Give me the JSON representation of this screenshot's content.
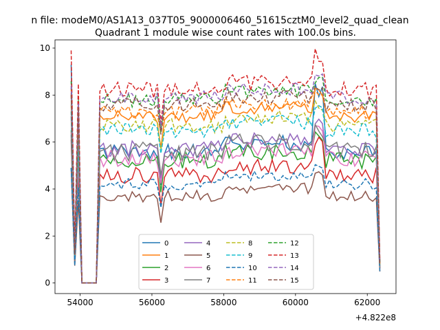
{
  "chart_data": {
    "type": "line",
    "suptitle": "n file: modeM0/AS1A13_037T05_9000006460_51615cztM0_level2_quad_clean",
    "title": "Quadrant 1 module wise count rates with 100.0s bins.",
    "xlabel": "",
    "ylabel": "",
    "offset_text": "+4.822e8",
    "xlim": [
      53300,
      62800
    ],
    "ylim": [
      -0.45,
      10.35
    ],
    "xticks": [
      54000,
      56000,
      58000,
      60000,
      62000
    ],
    "yticks": [
      0,
      2,
      4,
      6,
      8,
      10
    ],
    "grid": false,
    "legend": {
      "placement": "lower center",
      "columns": 4
    },
    "x": {
      "start": 53750,
      "end": 62350,
      "step": 100
    },
    "series": [
      {
        "name": "0",
        "color": "#1f77b4",
        "dashed": false,
        "base": 5.6,
        "amp": 0.35,
        "spike": 9.3
      },
      {
        "name": "1",
        "color": "#ff7f0e",
        "dashed": false,
        "base": 7.1,
        "amp": 0.3,
        "spike": 8.1
      },
      {
        "name": "2",
        "color": "#2ca02c",
        "dashed": false,
        "base": 5.2,
        "amp": 0.35,
        "spike": 6.5
      },
      {
        "name": "3",
        "color": "#d62728",
        "dashed": false,
        "base": 4.6,
        "amp": 0.35,
        "spike": 6.1
      },
      {
        "name": "4",
        "color": "#9467bd",
        "dashed": false,
        "base": 5.7,
        "amp": 0.35,
        "spike": 7.1
      },
      {
        "name": "5",
        "color": "#8c564b",
        "dashed": false,
        "base": 3.7,
        "amp": 0.25,
        "spike": 4.9
      },
      {
        "name": "6",
        "color": "#e377c2",
        "dashed": false,
        "base": 5.3,
        "amp": 0.35,
        "spike": 6.4
      },
      {
        "name": "7",
        "color": "#7f7f7f",
        "dashed": false,
        "base": 5.6,
        "amp": 0.4,
        "spike": 6.3
      },
      {
        "name": "8",
        "color": "#bcbd22",
        "dashed": true,
        "base": 6.7,
        "amp": 0.3,
        "spike": 7.6
      },
      {
        "name": "9",
        "color": "#17becf",
        "dashed": true,
        "base": 6.5,
        "amp": 0.3,
        "spike": 7.3
      },
      {
        "name": "10",
        "color": "#1f77b4",
        "dashed": true,
        "base": 4.2,
        "amp": 0.25,
        "spike": 4.9
      },
      {
        "name": "11",
        "color": "#ff7f0e",
        "dashed": true,
        "base": 7.3,
        "amp": 0.3,
        "spike": 8.3
      },
      {
        "name": "12",
        "color": "#2ca02c",
        "dashed": true,
        "base": 7.8,
        "amp": 0.3,
        "spike": 8.6
      },
      {
        "name": "13",
        "color": "#d62728",
        "dashed": true,
        "base": 8.2,
        "amp": 0.35,
        "spike": 9.9
      },
      {
        "name": "14",
        "color": "#9467bd",
        "dashed": true,
        "base": 7.9,
        "amp": 0.3,
        "spike": 8.4
      },
      {
        "name": "15",
        "color": "#8c564b",
        "dashed": true,
        "base": 7.6,
        "amp": 0.3,
        "spike": 8.0
      }
    ]
  }
}
